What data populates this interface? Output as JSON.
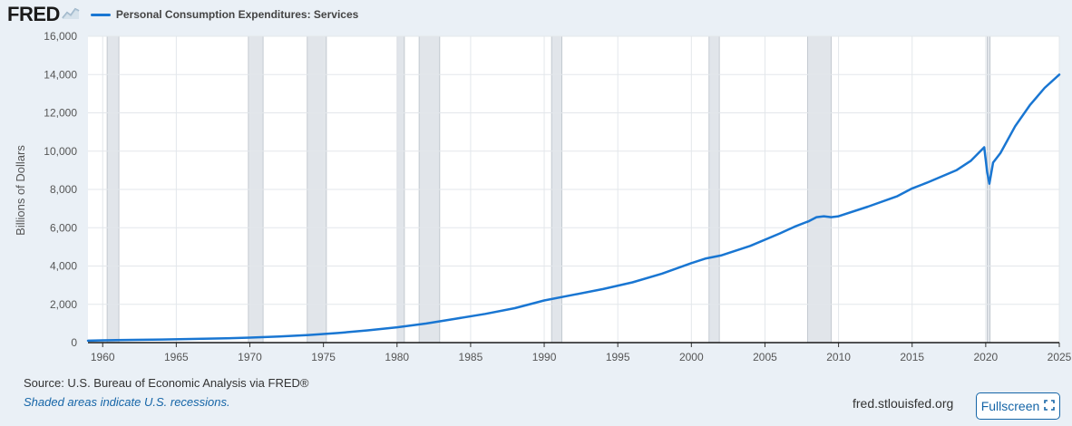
{
  "header": {
    "logo_text": "FRED",
    "logo_icon": "fred-chart-logo-icon"
  },
  "chart_data": {
    "type": "line",
    "title": "",
    "xlabel": "",
    "ylabel": "Billions of Dollars",
    "xlim": [
      1959,
      2025
    ],
    "ylim": [
      0,
      16000
    ],
    "grid": true,
    "legend": "top-left",
    "y_ticks": [
      0,
      2000,
      4000,
      6000,
      8000,
      10000,
      12000,
      14000,
      16000
    ],
    "y_tick_labels": [
      "0",
      "2,000",
      "4,000",
      "6,000",
      "8,000",
      "10,000",
      "12,000",
      "14,000",
      "16,000"
    ],
    "x_ticks": [
      1960,
      1965,
      1970,
      1975,
      1980,
      1985,
      1990,
      1995,
      2000,
      2005,
      2010,
      2015,
      2020,
      2025
    ],
    "x_tick_labels": [
      "1960",
      "1965",
      "1970",
      "1975",
      "1980",
      "1985",
      "1990",
      "1995",
      "2000",
      "2005",
      "2010",
      "2015",
      "2020",
      "2025"
    ],
    "series": [
      {
        "name": "Personal Consumption Expenditures: Services",
        "color": "#1976d2",
        "x": [
          1959,
          1960,
          1962,
          1964,
          1966,
          1968,
          1970,
          1972,
          1974,
          1976,
          1978,
          1980,
          1982,
          1984,
          1986,
          1988,
          1990,
          1992,
          1994,
          1996,
          1998,
          2000,
          2001,
          2002,
          2004,
          2006,
          2007,
          2008,
          2008.5,
          2009,
          2009.5,
          2010,
          2012,
          2014,
          2015,
          2016,
          2018,
          2019,
          2019.9,
          2020.1,
          2020.25,
          2020.5,
          2021,
          2022,
          2023,
          2024,
          2025
        ],
        "y": [
          100,
          120,
          140,
          160,
          190,
          220,
          260,
          320,
          400,
          500,
          640,
          800,
          1000,
          1250,
          1500,
          1800,
          2200,
          2500,
          2800,
          3150,
          3600,
          4150,
          4400,
          4550,
          5050,
          5700,
          6050,
          6350,
          6550,
          6600,
          6550,
          6600,
          7100,
          7650,
          8050,
          8350,
          9000,
          9500,
          10200,
          8900,
          8300,
          9400,
          9900,
          11300,
          12400,
          13300,
          14000
        ]
      }
    ],
    "recessions": [
      [
        1960.3,
        1961.1
      ],
      [
        1969.9,
        1970.9
      ],
      [
        1973.9,
        1975.2
      ],
      [
        1980.0,
        1980.5
      ],
      [
        1981.5,
        1982.9
      ],
      [
        1990.5,
        1991.2
      ],
      [
        2001.2,
        2001.9
      ],
      [
        2007.9,
        2009.5
      ],
      [
        2020.1,
        2020.3
      ]
    ]
  },
  "footer": {
    "source": "Source: U.S. Bureau of Economic Analysis via FRED®",
    "note": "Shaded areas indicate U.S. recessions.",
    "site": "fred.stlouisfed.org",
    "fullscreen_label": "Fullscreen",
    "fullscreen_icon": "expand-icon"
  }
}
